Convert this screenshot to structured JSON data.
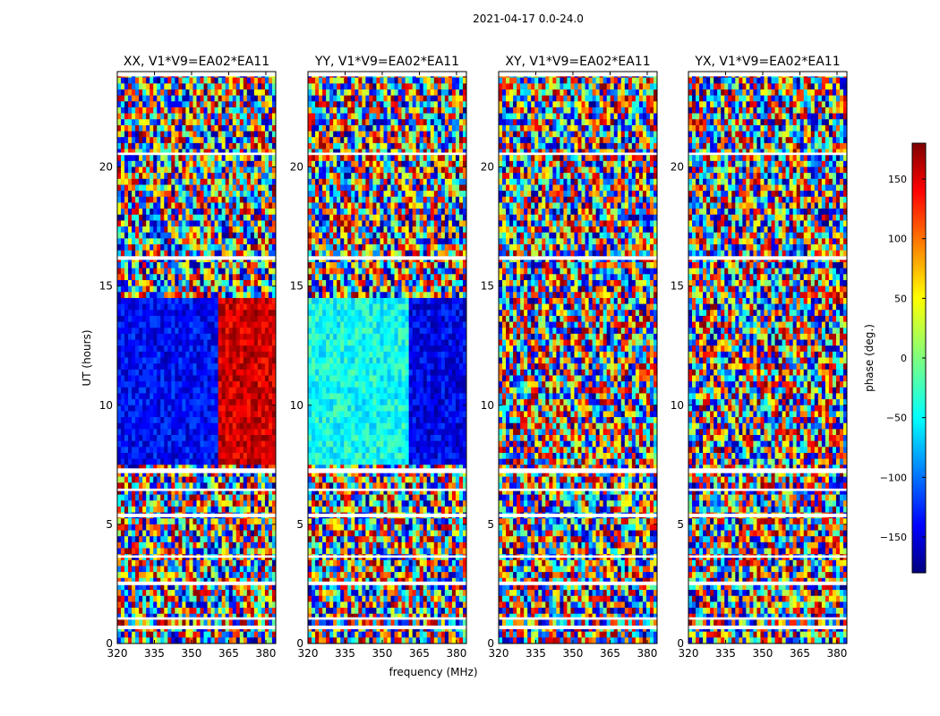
{
  "figure": {
    "suptitle": "2021-04-17 0.0-24.0",
    "xlabel": "frequency (MHz)",
    "ylabel": "UT (hours)",
    "colorbar_label": "phase (deg.)",
    "colorbar_ticks": [
      "150",
      "100",
      "50",
      "0",
      "−50",
      "−100",
      "−150"
    ]
  },
  "chart_data": [
    {
      "type": "heatmap",
      "title": "XX, V1*V9=EA02*EA11",
      "xlabel": "frequency (MHz)",
      "ylabel": "UT (hours)",
      "xticks": [
        "320",
        "335",
        "350",
        "365",
        "380"
      ],
      "yticks": [
        "0",
        "5",
        "10",
        "15",
        "20"
      ],
      "xlim": [
        320,
        384
      ],
      "ylim": [
        0,
        24
      ],
      "colorbar": {
        "label": "phase (deg.)",
        "range": [
          -180,
          180
        ],
        "colormap": "jet"
      },
      "coherent_band": {
        "ut_range": [
          7.5,
          14.5
        ],
        "freq_split_mhz": 361,
        "phase_low_deg": -135,
        "phase_high_deg": 150
      }
    },
    {
      "type": "heatmap",
      "title": "YY, V1*V9=EA02*EA11",
      "xlabel": "frequency (MHz)",
      "ylabel": "UT (hours)",
      "xticks": [
        "320",
        "335",
        "350",
        "365",
        "380"
      ],
      "yticks": [
        "0",
        "5",
        "10",
        "15",
        "20"
      ],
      "xlim": [
        320,
        384
      ],
      "ylim": [
        0,
        24
      ],
      "colorbar": {
        "label": "phase (deg.)",
        "range": [
          -180,
          180
        ],
        "colormap": "jet"
      },
      "coherent_band": {
        "ut_range": [
          7.5,
          14.5
        ],
        "freq_split_mhz": 361,
        "phase_low_deg": -40,
        "phase_high_deg": -140
      }
    },
    {
      "type": "heatmap",
      "title": "XY, V1*V9=EA02*EA11",
      "xlabel": "frequency (MHz)",
      "ylabel": "UT (hours)",
      "xticks": [
        "320",
        "335",
        "350",
        "365",
        "380"
      ],
      "yticks": [
        "0",
        "5",
        "10",
        "15",
        "20"
      ],
      "xlim": [
        320,
        384
      ],
      "ylim": [
        0,
        24
      ],
      "colorbar": {
        "label": "phase (deg.)",
        "range": [
          -180,
          180
        ],
        "colormap": "jet"
      }
    },
    {
      "type": "heatmap",
      "title": "YX, V1*V9=EA02*EA11",
      "xlabel": "frequency (MHz)",
      "ylabel": "UT (hours)",
      "xticks": [
        "320",
        "335",
        "350",
        "365",
        "380"
      ],
      "yticks": [
        "0",
        "5",
        "10",
        "15",
        "20"
      ],
      "xlim": [
        320,
        384
      ],
      "ylim": [
        0,
        24
      ],
      "colorbar": {
        "label": "phase (deg.)",
        "range": [
          -180,
          180
        ],
        "colormap": "jet"
      }
    }
  ]
}
